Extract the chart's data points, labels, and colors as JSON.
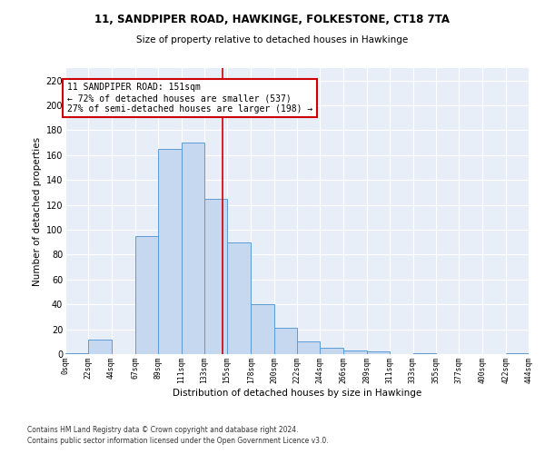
{
  "title1": "11, SANDPIPER ROAD, HAWKINGE, FOLKESTONE, CT18 7TA",
  "title2": "Size of property relative to detached houses in Hawkinge",
  "xlabel": "Distribution of detached houses by size in Hawkinge",
  "ylabel": "Number of detached properties",
  "footnote1": "Contains HM Land Registry data © Crown copyright and database right 2024.",
  "footnote2": "Contains public sector information licensed under the Open Government Licence v3.0.",
  "annotation_line1": "11 SANDPIPER ROAD: 151sqm",
  "annotation_line2": "← 72% of detached houses are smaller (537)",
  "annotation_line3": "27% of semi-detached houses are larger (198) →",
  "bar_color": "#c5d8f0",
  "bar_edge_color": "#5b9bd5",
  "bg_color": "#e8eef7",
  "grid_color": "#ffffff",
  "ref_line_color": "#cc0000",
  "ref_line_x": 151,
  "bin_edges": [
    0,
    22,
    44,
    67,
    89,
    111,
    133,
    155,
    178,
    200,
    222,
    244,
    266,
    289,
    311,
    333,
    355,
    377,
    400,
    422,
    444
  ],
  "bin_labels": [
    "0sqm",
    "22sqm",
    "44sqm",
    "67sqm",
    "89sqm",
    "111sqm",
    "133sqm",
    "155sqm",
    "178sqm",
    "200sqm",
    "222sqm",
    "244sqm",
    "266sqm",
    "289sqm",
    "311sqm",
    "333sqm",
    "355sqm",
    "377sqm",
    "400sqm",
    "422sqm",
    "444sqm"
  ],
  "bar_heights": [
    1,
    12,
    0,
    95,
    165,
    170,
    125,
    90,
    40,
    21,
    10,
    5,
    3,
    2,
    0,
    1,
    0,
    0,
    0,
    1
  ],
  "ylim": [
    0,
    230
  ],
  "yticks": [
    0,
    20,
    40,
    60,
    80,
    100,
    120,
    140,
    160,
    180,
    200,
    220
  ]
}
